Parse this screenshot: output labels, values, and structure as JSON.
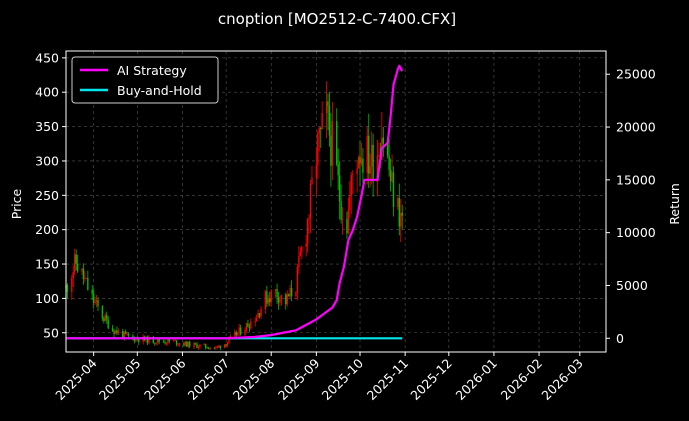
{
  "chart_data": {
    "type": "line",
    "title": "cnoption [MO2512-C-7400.CFX]",
    "ylabel": "Price",
    "y2label": "Return",
    "ylim": [
      22,
      460
    ],
    "y2lim": [
      -1300,
      27200
    ],
    "xlim": [
      "2025-03-13",
      "2026-03-19"
    ],
    "grid": true,
    "legend": "top-left",
    "x_tick_labels": [
      "2025-04",
      "2025-05",
      "2025-06",
      "2025-07",
      "2025-08",
      "2025-09",
      "2025-10",
      "2025-11",
      "2025-12",
      "2026-01",
      "2026-02",
      "2026-03"
    ],
    "x_tick_dates": [
      "2025-04-01",
      "2025-05-01",
      "2025-06-01",
      "2025-07-01",
      "2025-08-01",
      "2025-09-01",
      "2025-10-01",
      "2025-11-01",
      "2025-12-01",
      "2026-01-01",
      "2026-02-01",
      "2026-03-01"
    ],
    "y_ticks": [
      50,
      100,
      150,
      200,
      250,
      300,
      350,
      400,
      450
    ],
    "y2_ticks": [
      0,
      5000,
      10000,
      15000,
      20000,
      25000
    ],
    "colors": {
      "up": "#ff0000",
      "down": "#00c000",
      "ai": "#ff00ff",
      "bh": "#00e5ee",
      "grid": "#555555"
    },
    "price_anchors": [
      [
        "2025-03-13",
        115
      ],
      [
        "2025-03-17",
        140
      ],
      [
        "2025-03-20",
        152
      ],
      [
        "2025-03-25",
        130
      ],
      [
        "2025-03-31",
        100
      ],
      [
        "2025-04-07",
        75
      ],
      [
        "2025-04-14",
        55
      ],
      [
        "2025-04-21",
        47
      ],
      [
        "2025-04-28",
        42
      ],
      [
        "2025-05-06",
        40
      ],
      [
        "2025-05-15",
        38
      ],
      [
        "2025-05-26",
        37
      ],
      [
        "2025-06-05",
        33
      ],
      [
        "2025-06-16",
        30
      ],
      [
        "2025-06-24",
        28
      ],
      [
        "2025-07-01",
        35
      ],
      [
        "2025-07-08",
        48
      ],
      [
        "2025-07-15",
        60
      ],
      [
        "2025-07-22",
        75
      ],
      [
        "2025-07-28",
        100
      ],
      [
        "2025-08-04",
        110
      ],
      [
        "2025-08-11",
        95
      ],
      [
        "2025-08-18",
        120
      ],
      [
        "2025-08-21",
        160
      ],
      [
        "2025-08-25",
        200
      ],
      [
        "2025-08-28",
        240
      ],
      [
        "2025-09-01",
        310
      ],
      [
        "2025-09-04",
        330
      ],
      [
        "2025-09-08",
        360
      ],
      [
        "2025-09-12",
        320
      ],
      [
        "2025-09-17",
        250
      ],
      [
        "2025-09-22",
        210
      ],
      [
        "2025-09-26",
        280
      ],
      [
        "2025-09-30",
        320
      ],
      [
        "2025-10-09",
        300
      ],
      [
        "2025-10-13",
        320
      ],
      [
        "2025-10-16",
        350
      ],
      [
        "2025-10-20",
        300
      ],
      [
        "2025-10-23",
        260
      ],
      [
        "2025-10-27",
        230
      ],
      [
        "2025-10-30",
        215
      ]
    ],
    "ai_strategy": [
      [
        "2025-03-13",
        0
      ],
      [
        "2025-06-30",
        0
      ],
      [
        "2025-07-20",
        120
      ],
      [
        "2025-08-01",
        300
      ],
      [
        "2025-08-10",
        550
      ],
      [
        "2025-08-18",
        750
      ],
      [
        "2025-08-24",
        1200
      ],
      [
        "2025-09-01",
        1800
      ],
      [
        "2025-09-08",
        2500
      ],
      [
        "2025-09-12",
        2900
      ],
      [
        "2025-09-15",
        3600
      ],
      [
        "2025-09-17",
        5200
      ],
      [
        "2025-09-20",
        6800
      ],
      [
        "2025-09-23",
        9300
      ],
      [
        "2025-09-26",
        10200
      ],
      [
        "2025-09-29",
        11500
      ],
      [
        "2025-10-02",
        13500
      ],
      [
        "2025-10-04",
        15000
      ],
      [
        "2025-10-13",
        15000
      ],
      [
        "2025-10-16",
        18000
      ],
      [
        "2025-10-20",
        18500
      ],
      [
        "2025-10-22",
        21000
      ],
      [
        "2025-10-24",
        24000
      ],
      [
        "2025-10-27",
        25500
      ],
      [
        "2025-10-28",
        25800
      ],
      [
        "2025-10-30",
        25300
      ]
    ],
    "buy_and_hold": [
      [
        "2025-03-13",
        0
      ],
      [
        "2025-10-30",
        0
      ]
    ],
    "series": [
      {
        "name": "AI Strategy"
      },
      {
        "name": "Buy-and-Hold"
      }
    ]
  }
}
